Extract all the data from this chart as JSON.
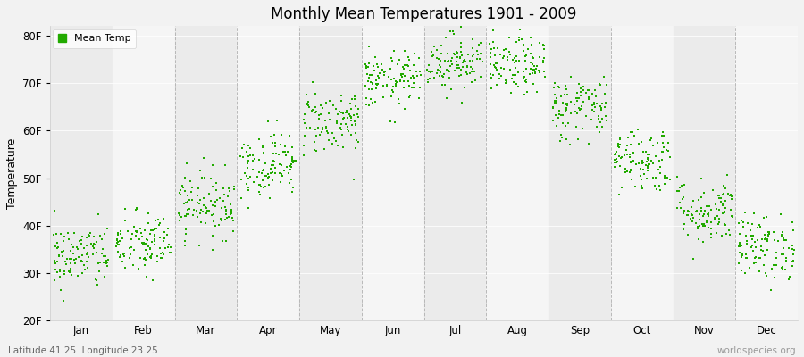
{
  "title": "Monthly Mean Temperatures 1901 - 2009",
  "ylabel": "Temperature",
  "xlabel_bottom": "Latitude 41.25  Longitude 23.25",
  "xlabel_right": "worldspecies.org",
  "legend_label": "Mean Temp",
  "dot_color": "#22aa00",
  "background_color": "#f2f2f2",
  "plot_bg_even": "#ebebeb",
  "plot_bg_odd": "#f5f5f5",
  "ylim": [
    20,
    82
  ],
  "yticks": [
    20,
    30,
    40,
    50,
    60,
    70,
    80
  ],
  "ytick_labels": [
    "20F",
    "30F",
    "40F",
    "50F",
    "60F",
    "70F",
    "80F"
  ],
  "months": [
    "Jan",
    "Feb",
    "Mar",
    "Apr",
    "May",
    "Jun",
    "Jul",
    "Aug",
    "Sep",
    "Oct",
    "Nov",
    "Dec"
  ],
  "month_means_F": [
    33.5,
    36.0,
    44.5,
    53.0,
    62.0,
    70.5,
    74.5,
    73.5,
    65.0,
    54.0,
    43.0,
    35.5
  ],
  "month_stds_F": [
    3.5,
    3.5,
    3.5,
    3.5,
    3.5,
    3.0,
    3.0,
    3.0,
    3.5,
    3.5,
    3.5,
    3.5
  ],
  "n_years": 109,
  "seed": 42,
  "marker_size": 3
}
